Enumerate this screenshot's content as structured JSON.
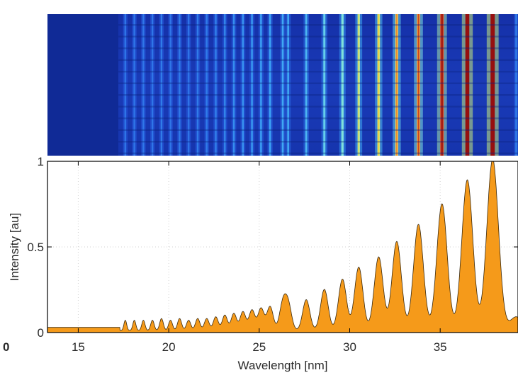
{
  "chart_data": {
    "type": "area",
    "xlabel": "Wavelength [nm]",
    "ylabel": "Intensity [au]",
    "xlim": [
      13.3,
      39.3
    ],
    "ylim": [
      0,
      1
    ],
    "xticks": [
      15,
      20,
      25,
      30,
      35
    ],
    "yticks": [
      0,
      0.5,
      1
    ],
    "ytick_labels": [
      "0",
      "0.5",
      "1"
    ],
    "corner_label": "0",
    "fill_color": "#f59a1a",
    "line_color": "#3a2a10",
    "detector_image_colormap": "jet",
    "background_level": 0.03,
    "onset_wavelength_nm": 17.3,
    "peaks": {
      "x": [
        17.6,
        18.1,
        18.6,
        19.1,
        19.6,
        20.1,
        20.6,
        21.1,
        21.6,
        22.1,
        22.6,
        23.1,
        23.6,
        24.1,
        24.6,
        25.1,
        25.6,
        26.3,
        26.6,
        27.6,
        28.6,
        29.6,
        30.5,
        31.6,
        32.6,
        33.8,
        35.1,
        36.5,
        37.9,
        39.2
      ],
      "y": [
        0.06,
        0.06,
        0.06,
        0.06,
        0.07,
        0.06,
        0.07,
        0.06,
        0.07,
        0.07,
        0.08,
        0.09,
        0.1,
        0.11,
        0.12,
        0.13,
        0.14,
        0.15,
        0.15,
        0.18,
        0.24,
        0.3,
        0.37,
        0.43,
        0.52,
        0.62,
        0.74,
        0.88,
        1.0,
        0.08
      ]
    }
  }
}
